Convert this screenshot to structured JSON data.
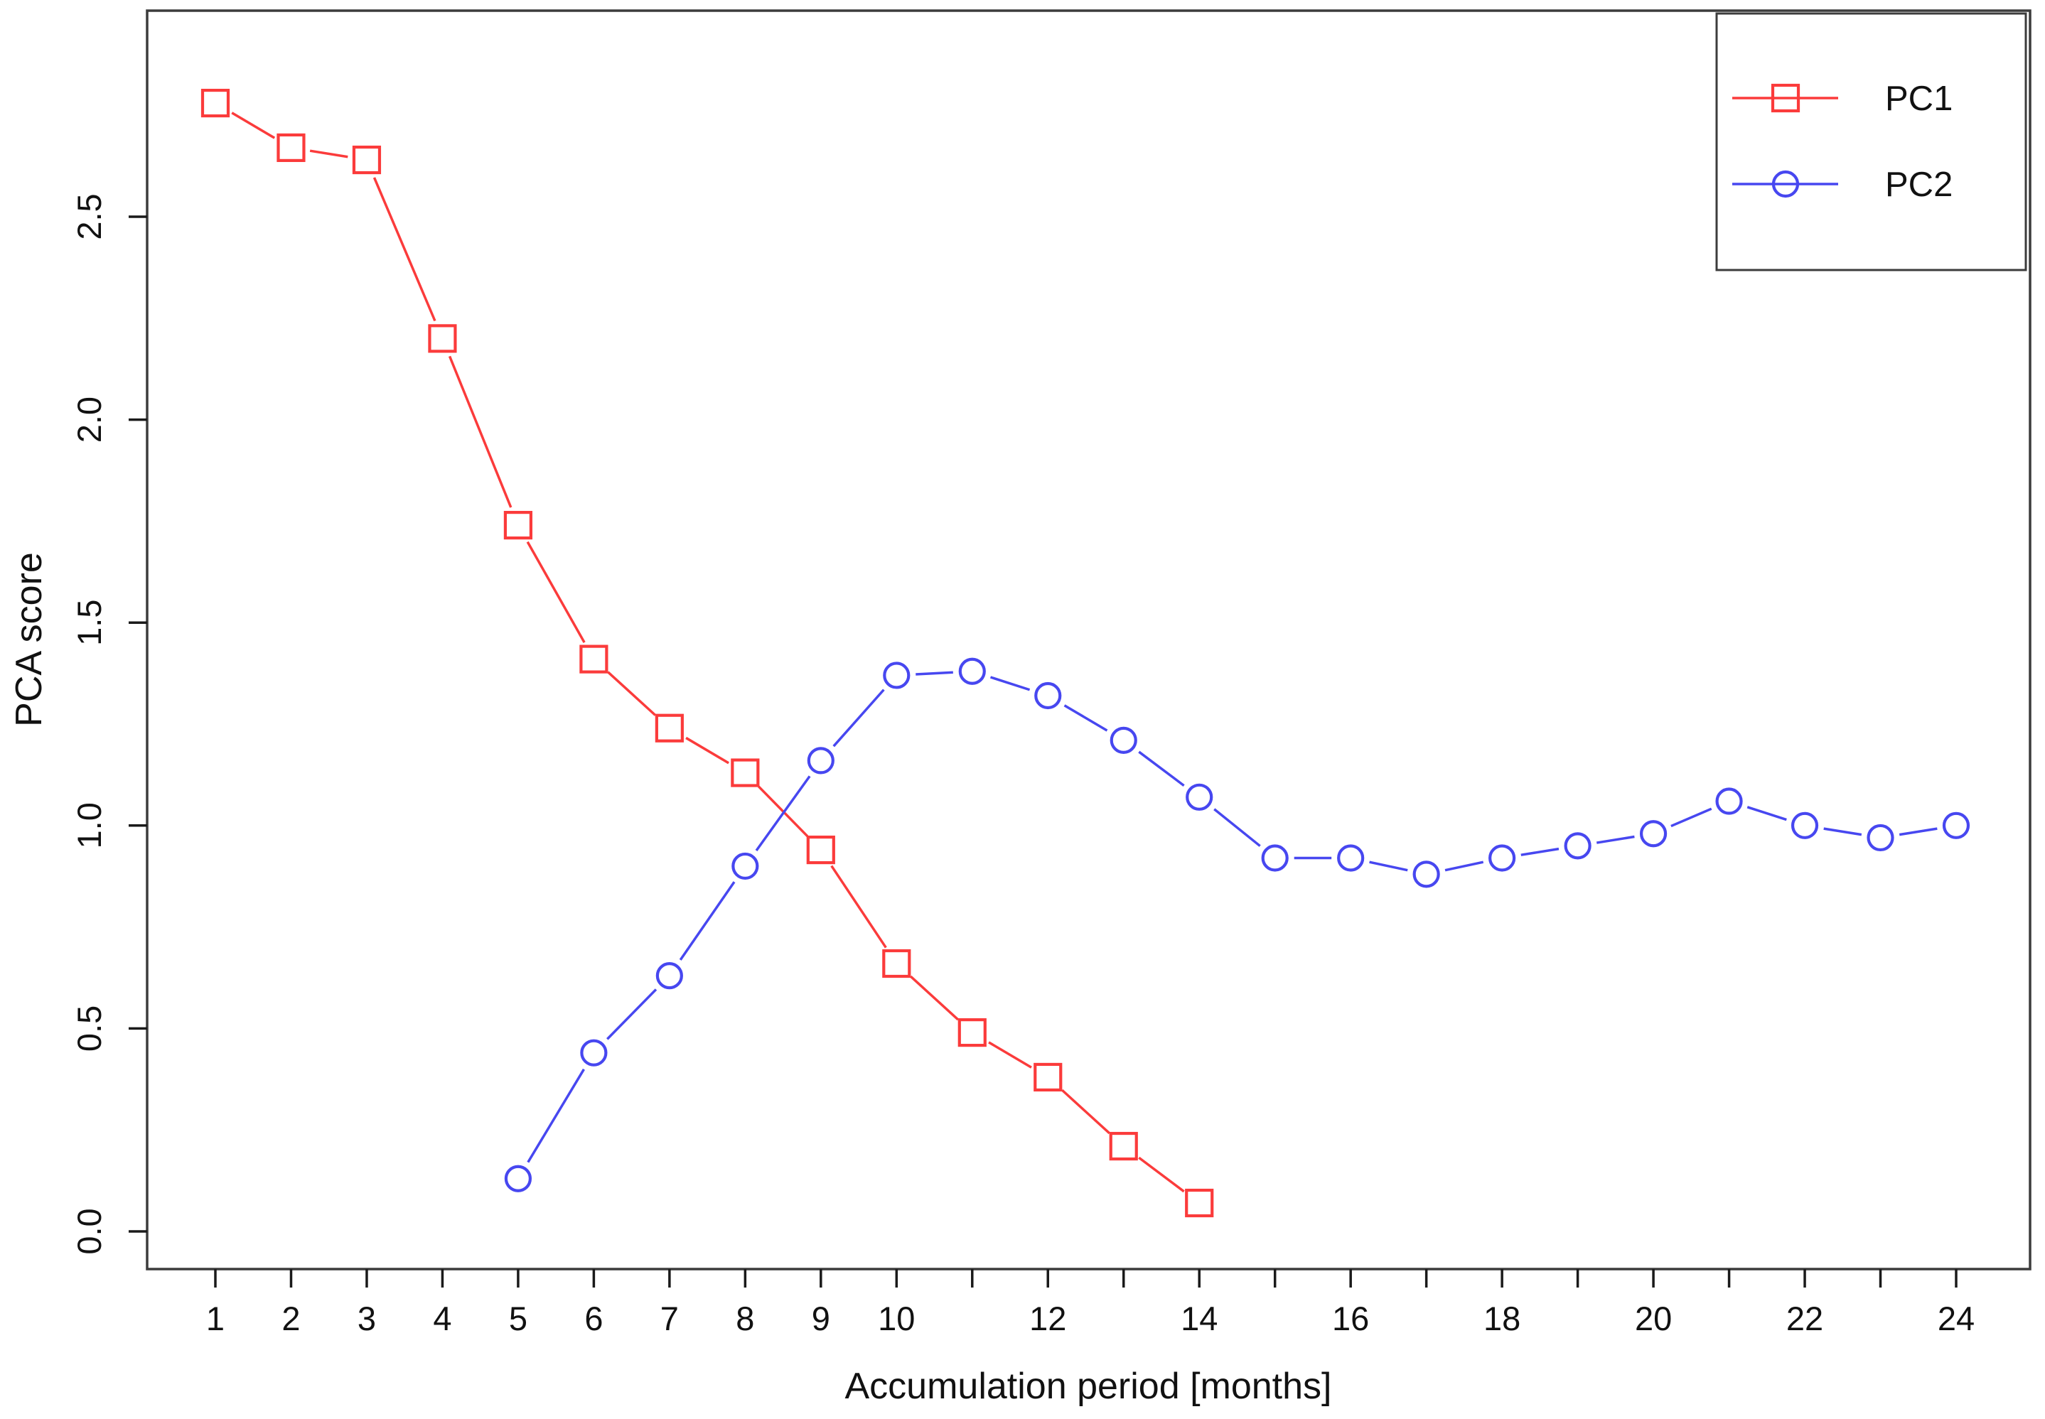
{
  "chart_data": {
    "type": "line",
    "title": "",
    "xlabel": "Accumulation period [months]",
    "ylabel": "PCA score",
    "xlim": [
      0.5,
      24.5
    ],
    "ylim": [
      -0.09,
      3.0
    ],
    "grid": false,
    "legend_position": "top-right",
    "x_ticks": [
      1,
      2,
      3,
      4,
      5,
      6,
      7,
      8,
      9,
      10,
      11,
      12,
      13,
      14,
      15,
      16,
      17,
      18,
      19,
      20,
      21,
      22,
      23,
      24
    ],
    "x_tick_labels": [
      "1",
      "2",
      "3",
      "4",
      "5",
      "6",
      "7",
      "8",
      "9",
      "10",
      "",
      "12",
      "",
      "14",
      "",
      "16",
      "",
      "18",
      "",
      "20",
      "",
      "22",
      "",
      "24"
    ],
    "y_ticks": [
      0.0,
      0.5,
      1.0,
      1.5,
      2.0,
      2.5
    ],
    "y_tick_labels": [
      "0.0",
      "0.5",
      "1.0",
      "1.5",
      "2.0",
      "2.5"
    ],
    "series": [
      {
        "name": "PC1",
        "marker": "square",
        "color": "#fb3b3b",
        "x": [
          1,
          2,
          3,
          4,
          5,
          6,
          7,
          8,
          9,
          10,
          11,
          12,
          13,
          14
        ],
        "values": [
          2.78,
          2.67,
          2.64,
          2.2,
          1.74,
          1.41,
          1.24,
          1.13,
          0.94,
          0.66,
          0.49,
          0.38,
          0.21,
          0.07
        ]
      },
      {
        "name": "PC2",
        "marker": "circle",
        "color": "#4747f0",
        "x": [
          5,
          6,
          7,
          8,
          9,
          10,
          11,
          12,
          13,
          14,
          15,
          16,
          17,
          18,
          19,
          20,
          21,
          22,
          23,
          24
        ],
        "values": [
          0.13,
          0.44,
          0.63,
          0.9,
          1.16,
          1.37,
          1.38,
          1.32,
          1.21,
          1.07,
          0.92,
          0.92,
          0.88,
          0.92,
          0.95,
          0.98,
          1.06,
          1.0,
          0.97,
          1.0
        ]
      }
    ],
    "frame_color": "#3c3c3c",
    "tick_color": "#1a1a1a"
  }
}
